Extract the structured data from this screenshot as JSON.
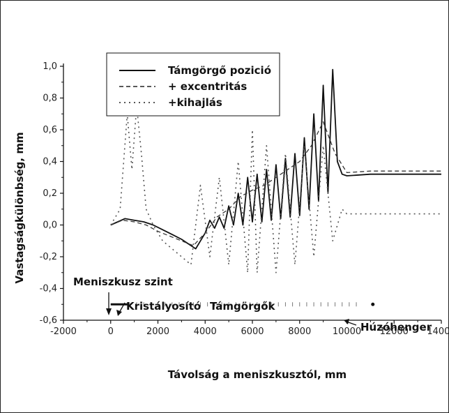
{
  "chart_data": {
    "type": "line",
    "xlabel": "Távolság a meniszkusztól, mm",
    "ylabel": "Vastagságkülönbség, mm",
    "xlim": [
      -2000,
      14000
    ],
    "ylim": [
      -0.6,
      1.0
    ],
    "x_ticks": [
      -2000,
      0,
      2000,
      4000,
      6000,
      8000,
      10000,
      12000,
      14000
    ],
    "x_tick_labels": [
      "-2000",
      "0",
      "2000",
      "4000",
      "6000",
      "8000",
      "10000",
      "12000",
      "14000"
    ],
    "y_ticks": [
      -0.6,
      -0.4,
      -0.2,
      0.0,
      0.2,
      0.4,
      0.6,
      0.8,
      1.0
    ],
    "y_tick_labels": [
      "-0,6",
      "-0,4",
      "-0,2",
      "0,0",
      "0,2",
      "0,4",
      "0,6",
      "0,8",
      "1,0"
    ],
    "legend_position": "top-center",
    "series": [
      {
        "name": "Támgörgő pozició",
        "style": "solid",
        "color": "#111111",
        "x": [
          0,
          300,
          600,
          1000,
          1400,
          1800,
          2200,
          2600,
          3000,
          3300,
          3600,
          3800,
          4000,
          4200,
          4400,
          4600,
          4800,
          5000,
          5200,
          5400,
          5600,
          5800,
          6000,
          6200,
          6400,
          6600,
          6800,
          7000,
          7200,
          7400,
          7600,
          7800,
          8000,
          8200,
          8400,
          8600,
          8800,
          9000,
          9200,
          9400,
          9600,
          9800,
          10000,
          11000,
          12000,
          13000,
          14000
        ],
        "y": [
          0.0,
          0.02,
          0.04,
          0.03,
          0.02,
          0.0,
          -0.03,
          -0.06,
          -0.09,
          -0.12,
          -0.15,
          -0.1,
          -0.05,
          0.03,
          -0.02,
          0.05,
          -0.02,
          0.12,
          0.0,
          0.2,
          0.0,
          0.3,
          0.02,
          0.32,
          0.02,
          0.35,
          0.03,
          0.38,
          0.04,
          0.42,
          0.05,
          0.45,
          0.06,
          0.55,
          0.1,
          0.7,
          0.15,
          0.88,
          0.2,
          0.98,
          0.4,
          0.32,
          0.31,
          0.32,
          0.32,
          0.32,
          0.32
        ]
      },
      {
        "name": "+ excentritás",
        "style": "dashed",
        "color": "#333333",
        "x": [
          0,
          500,
          1000,
          1500,
          2000,
          2500,
          3000,
          3500,
          4000,
          4500,
          5000,
          5500,
          6000,
          6500,
          7000,
          7500,
          8000,
          8500,
          9000,
          9500,
          10000,
          11000,
          12000,
          13000,
          14000
        ],
        "y": [
          0.0,
          0.03,
          0.02,
          0.0,
          -0.04,
          -0.07,
          -0.1,
          -0.13,
          -0.05,
          0.05,
          0.1,
          0.18,
          0.22,
          0.25,
          0.3,
          0.35,
          0.4,
          0.5,
          0.65,
          0.45,
          0.33,
          0.34,
          0.34,
          0.34,
          0.34
        ]
      },
      {
        "name": "+kihajlás",
        "style": "dotted",
        "color": "#555555",
        "x": [
          0,
          400,
          700,
          900,
          1100,
          1300,
          1500,
          1800,
          2200,
          2600,
          3000,
          3400,
          3800,
          4200,
          4600,
          5000,
          5400,
          5800,
          6000,
          6200,
          6600,
          7000,
          7400,
          7800,
          8200,
          8600,
          9000,
          9400,
          9800,
          10000,
          11000,
          12000,
          13000,
          14000
        ],
        "y": [
          0.0,
          0.1,
          0.7,
          0.35,
          0.75,
          0.45,
          0.1,
          0.0,
          -0.1,
          -0.15,
          -0.2,
          -0.25,
          0.25,
          -0.2,
          0.3,
          -0.25,
          0.4,
          -0.3,
          0.6,
          -0.3,
          0.5,
          -0.3,
          0.45,
          -0.25,
          0.5,
          -0.2,
          0.5,
          -0.1,
          0.1,
          0.07,
          0.07,
          0.07,
          0.07,
          0.07
        ]
      }
    ],
    "annotations": [
      {
        "text": "Meniszkusz szint",
        "x": 0,
        "y": -0.5
      },
      {
        "text": "Kristályosító",
        "x": 450,
        "y": -0.5
      },
      {
        "text": "Támgörgők",
        "x": 2500,
        "y": -0.5
      },
      {
        "text": "Húzóhenger",
        "x": 11200,
        "y": -0.5
      }
    ],
    "markers": {
      "meniscus_level": -0.5,
      "kristalyosito_x": [
        0,
        700
      ],
      "rollers_x_start": 800,
      "rollers_x_end": 10500,
      "rollers_step": 300,
      "huzohenger_x": 11100
    }
  }
}
